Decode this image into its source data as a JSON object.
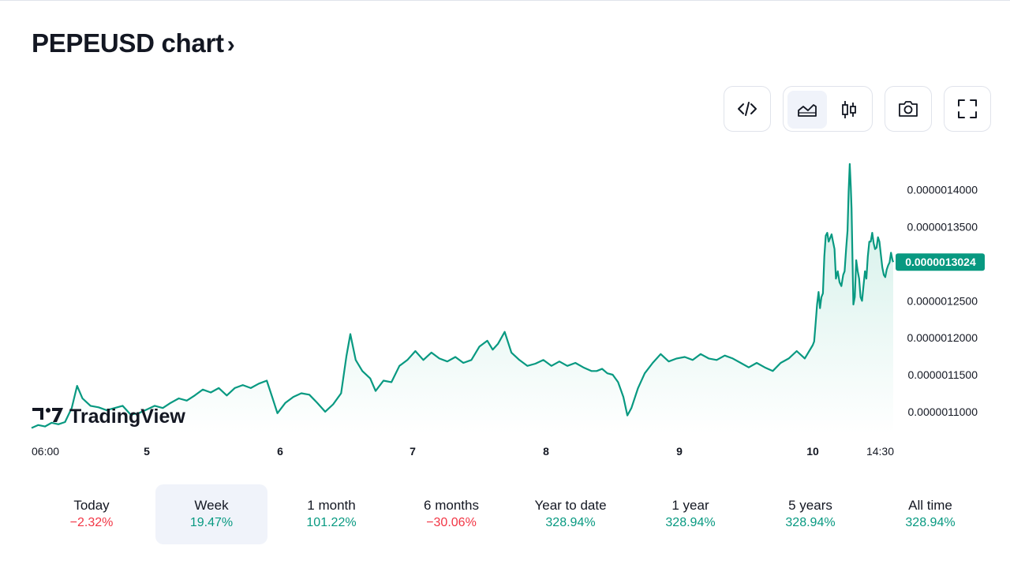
{
  "header": {
    "title": "PEPEUSD chart",
    "chevron": "›"
  },
  "toolbar": {
    "embed_icon": "code-icon",
    "area_icon": "area-chart-icon",
    "candle_icon": "candlestick-icon",
    "snapshot_icon": "camera-icon",
    "fullscreen_icon": "fullscreen-icon",
    "active_style": "area"
  },
  "watermark": {
    "text": "TradingView"
  },
  "price_badge": {
    "text": "0.0000013024",
    "color": "#089981"
  },
  "chart_data": {
    "type": "area",
    "symbol": "PEPEUSD",
    "color": "#089981",
    "fill_top": "#cdeee6",
    "fill_bottom": "#ffffff",
    "x_tick_labels": [
      "06:00",
      "5",
      "6",
      "7",
      "8",
      "9",
      "10",
      "14:30"
    ],
    "y_tick_labels": [
      "0.0000014000",
      "0.0000013500",
      "0.0000013000",
      "0.0000012500",
      "0.0000012000",
      "0.0000011500",
      "0.0000011000"
    ],
    "y_ticks": [
      1.4e-06,
      1.35e-06,
      1.3e-06,
      1.25e-06,
      1.2e-06,
      1.15e-06,
      1.1e-06
    ],
    "ylim": [
      1.07e-06,
      1.452e-06
    ],
    "x_range": [
      "06:00",
      "14:30"
    ],
    "last_price": 1.3024e-06,
    "y_scale": "1e-7",
    "points": [
      [
        0,
        10.78
      ],
      [
        0.05,
        10.82
      ],
      [
        0.1,
        10.8
      ],
      [
        0.15,
        10.85
      ],
      [
        0.2,
        10.83
      ],
      [
        0.25,
        10.86
      ],
      [
        0.3,
        11.05
      ],
      [
        0.34,
        11.35
      ],
      [
        0.38,
        11.18
      ],
      [
        0.44,
        11.08
      ],
      [
        0.5,
        11.06
      ],
      [
        0.56,
        11.02
      ],
      [
        0.62,
        11.05
      ],
      [
        0.68,
        11.08
      ],
      [
        0.74,
        10.96
      ],
      [
        0.8,
        10.98
      ],
      [
        0.86,
        11.03
      ],
      [
        0.92,
        11.08
      ],
      [
        0.98,
        11.05
      ],
      [
        1.04,
        11.12
      ],
      [
        1.1,
        11.18
      ],
      [
        1.16,
        11.15
      ],
      [
        1.22,
        11.22
      ],
      [
        1.28,
        11.3
      ],
      [
        1.34,
        11.26
      ],
      [
        1.4,
        11.32
      ],
      [
        1.46,
        11.22
      ],
      [
        1.52,
        11.32
      ],
      [
        1.58,
        11.36
      ],
      [
        1.64,
        11.32
      ],
      [
        1.7,
        11.38
      ],
      [
        1.76,
        11.42
      ],
      [
        1.8,
        11.2
      ],
      [
        1.84,
        10.98
      ],
      [
        1.9,
        11.12
      ],
      [
        1.96,
        11.2
      ],
      [
        2.02,
        11.25
      ],
      [
        2.08,
        11.23
      ],
      [
        2.14,
        11.12
      ],
      [
        2.2,
        11.0
      ],
      [
        2.26,
        11.1
      ],
      [
        2.32,
        11.25
      ],
      [
        2.36,
        11.75
      ],
      [
        2.39,
        12.05
      ],
      [
        2.43,
        11.7
      ],
      [
        2.48,
        11.55
      ],
      [
        2.54,
        11.45
      ],
      [
        2.58,
        11.28
      ],
      [
        2.64,
        11.42
      ],
      [
        2.7,
        11.4
      ],
      [
        2.76,
        11.62
      ],
      [
        2.82,
        11.7
      ],
      [
        2.88,
        11.82
      ],
      [
        2.94,
        11.7
      ],
      [
        3.0,
        11.8
      ],
      [
        3.06,
        11.72
      ],
      [
        3.12,
        11.68
      ],
      [
        3.18,
        11.74
      ],
      [
        3.24,
        11.66
      ],
      [
        3.3,
        11.7
      ],
      [
        3.36,
        11.88
      ],
      [
        3.42,
        11.96
      ],
      [
        3.46,
        11.84
      ],
      [
        3.5,
        11.92
      ],
      [
        3.55,
        12.08
      ],
      [
        3.6,
        11.8
      ],
      [
        3.66,
        11.7
      ],
      [
        3.72,
        11.62
      ],
      [
        3.78,
        11.65
      ],
      [
        3.84,
        11.7
      ],
      [
        3.9,
        11.62
      ],
      [
        3.96,
        11.68
      ],
      [
        4.02,
        11.62
      ],
      [
        4.08,
        11.66
      ],
      [
        4.14,
        11.6
      ],
      [
        4.2,
        11.55
      ],
      [
        4.24,
        11.55
      ],
      [
        4.28,
        11.58
      ],
      [
        4.32,
        11.52
      ],
      [
        4.36,
        11.5
      ],
      [
        4.4,
        11.4
      ],
      [
        4.44,
        11.2
      ],
      [
        4.47,
        10.95
      ],
      [
        4.5,
        11.05
      ],
      [
        4.55,
        11.32
      ],
      [
        4.6,
        11.52
      ],
      [
        4.66,
        11.66
      ],
      [
        4.72,
        11.78
      ],
      [
        4.78,
        11.68
      ],
      [
        4.84,
        11.72
      ],
      [
        4.9,
        11.74
      ],
      [
        4.96,
        11.7
      ],
      [
        5.02,
        11.78
      ],
      [
        5.08,
        11.72
      ],
      [
        5.14,
        11.7
      ],
      [
        5.2,
        11.76
      ],
      [
        5.26,
        11.72
      ],
      [
        5.32,
        11.66
      ],
      [
        5.38,
        11.6
      ],
      [
        5.44,
        11.66
      ],
      [
        5.5,
        11.6
      ],
      [
        5.56,
        11.55
      ],
      [
        5.62,
        11.66
      ],
      [
        5.68,
        11.72
      ],
      [
        5.74,
        11.82
      ],
      [
        5.8,
        11.72
      ],
      [
        5.86,
        11.9
      ],
      [
        5.9,
        11.95
      ],
      [
        5.94,
        12.2
      ],
      [
        5.98,
        12.45
      ],
      [
        6.02,
        12.62
      ],
      [
        6.06,
        12.4
      ],
      [
        6.1,
        12.55
      ],
      [
        6.14,
        12.6
      ],
      [
        6.18,
        13.1
      ],
      [
        6.22,
        13.38
      ],
      [
        6.26,
        13.42
      ],
      [
        6.3,
        13.3
      ],
      [
        6.34,
        13.35
      ],
      [
        6.38,
        13.4
      ],
      [
        6.42,
        13.3
      ],
      [
        6.46,
        13.2
      ],
      [
        6.5,
        12.8
      ],
      [
        6.55,
        12.9
      ],
      [
        6.6,
        12.75
      ],
      [
        6.65,
        12.7
      ],
      [
        6.7,
        12.85
      ],
      [
        6.74,
        12.9
      ],
      [
        6.78,
        13.2
      ],
      [
        6.82,
        13.45
      ],
      [
        6.85,
        13.98
      ],
      [
        6.88,
        14.35
      ],
      [
        6.91,
        14.05
      ],
      [
        6.93,
        13.75
      ],
      [
        6.96,
        13.0
      ],
      [
        6.98,
        12.45
      ],
      [
        7.02,
        12.55
      ],
      [
        7.06,
        13.05
      ],
      [
        7.1,
        12.9
      ],
      [
        7.14,
        12.8
      ],
      [
        7.18,
        12.55
      ],
      [
        7.22,
        12.5
      ],
      [
        7.26,
        12.7
      ],
      [
        7.3,
        12.9
      ],
      [
        7.34,
        12.8
      ],
      [
        7.38,
        13.1
      ],
      [
        7.42,
        13.3
      ],
      [
        7.46,
        13.3
      ],
      [
        7.5,
        13.42
      ],
      [
        7.54,
        13.28
      ],
      [
        7.58,
        13.2
      ],
      [
        7.62,
        13.22
      ],
      [
        7.66,
        13.36
      ],
      [
        7.7,
        13.3
      ],
      [
        7.74,
        13.12
      ],
      [
        7.78,
        12.95
      ],
      [
        7.82,
        12.85
      ],
      [
        7.86,
        12.82
      ],
      [
        7.9,
        12.92
      ],
      [
        7.94,
        12.98
      ],
      [
        7.98,
        13.02
      ],
      [
        8.02,
        13.15
      ],
      [
        8.06,
        13.05
      ],
      [
        8.08,
        13.024
      ]
    ]
  },
  "ranges": [
    {
      "label": "Today",
      "value": "−2.32%",
      "positive": false,
      "active": false
    },
    {
      "label": "Week",
      "value": "19.47%",
      "positive": true,
      "active": true
    },
    {
      "label": "1 month",
      "value": "101.22%",
      "positive": true,
      "active": false
    },
    {
      "label": "6 months",
      "value": "−30.06%",
      "positive": false,
      "active": false
    },
    {
      "label": "Year to date",
      "value": "328.94%",
      "positive": true,
      "active": false
    },
    {
      "label": "1 year",
      "value": "328.94%",
      "positive": true,
      "active": false
    },
    {
      "label": "5 years",
      "value": "328.94%",
      "positive": true,
      "active": false
    },
    {
      "label": "All time",
      "value": "328.94%",
      "positive": true,
      "active": false
    }
  ]
}
